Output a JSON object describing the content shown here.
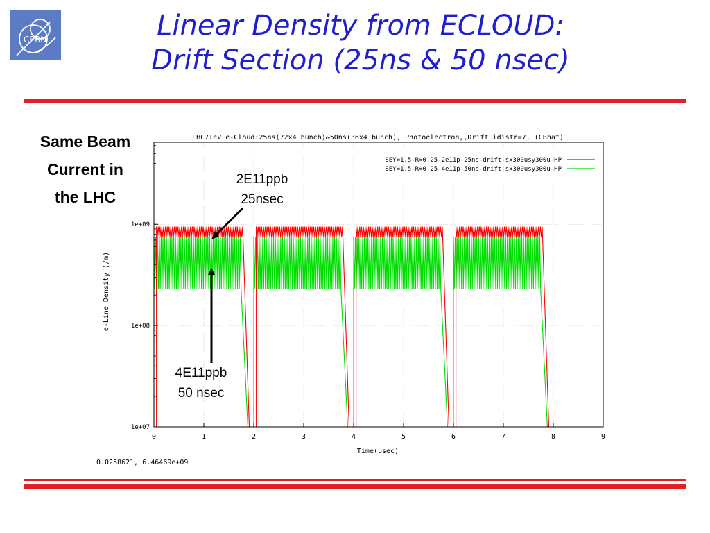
{
  "slide": {
    "title_line1": "Linear Density from ECLOUD:",
    "title_line2": "Drift Section (25ns & 50 nsec)",
    "logo_text": "CERN",
    "side_note_lines": [
      "Same Beam",
      "Current  in",
      "the LHC"
    ],
    "annotation_25ns": [
      "2E11ppb",
      "25nsec"
    ],
    "annotation_50ns": [
      "4E11ppb",
      "50 nsec"
    ],
    "accent_color": "#e31e24",
    "title_color": "#1f1fd0"
  },
  "chart_data": {
    "type": "line",
    "title": "LHC7TeV e-Cloud:25ns(72x4 bunch)&50ns(36x4 bunch), Photoelectron,,Drift idistr=7, (CBhat)",
    "xlabel": "Time(usec)",
    "ylabel": "e-Line Density (/m)",
    "xlim": [
      0,
      9
    ],
    "ylim": [
      10000000.0,
      6464690000.0
    ],
    "y_scale": "log",
    "x_ticks": [
      "0",
      "1",
      "2",
      "3",
      "4",
      "5",
      "6",
      "7",
      "8",
      "9"
    ],
    "y_ticks": [
      "1e+07",
      "1e+08",
      "1e+09"
    ],
    "legend_position": "top-right",
    "cursor_readout": "0.0258621,  6.46469e+09",
    "series": [
      {
        "name": "SEY=1.5-R=0.25-2e11p-25ns-drift-sx300usy300u-HP",
        "color": "#ff0000",
        "trains": [
          [
            0.05,
            1.79
          ],
          [
            2.05,
            3.79
          ],
          [
            4.05,
            5.79
          ],
          [
            6.05,
            7.79
          ]
        ],
        "plateau_high": 950000000.0,
        "plateau_low": 750000000.0,
        "floor": 10000000.0
      },
      {
        "name": "SEY=1.5-R=0.25-4e11p-50ns-drift-sx300usy300u-HP",
        "color": "#00dd00",
        "trains": [
          [
            0.0,
            1.76
          ],
          [
            2.0,
            3.76
          ],
          [
            4.0,
            5.76
          ],
          [
            6.0,
            7.76
          ]
        ],
        "plateau_high": 750000000.0,
        "plateau_low": 230000000.0,
        "floor": 10000000.0
      }
    ]
  }
}
